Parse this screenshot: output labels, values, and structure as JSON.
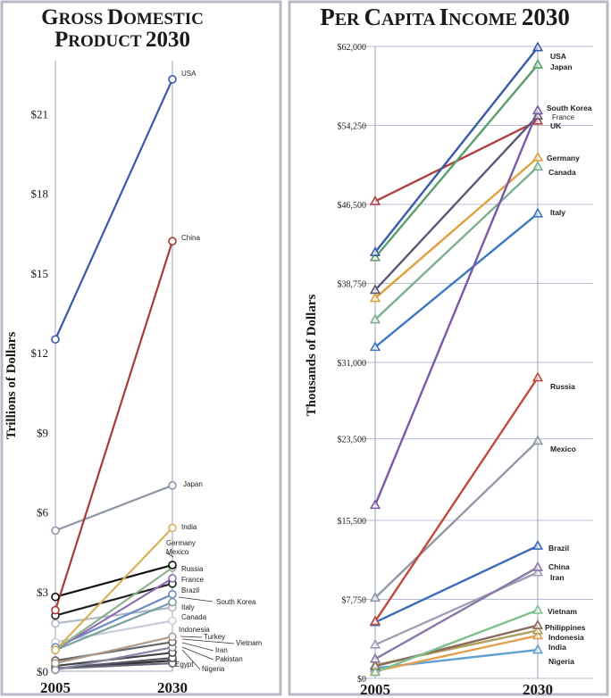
{
  "chart_data": [
    {
      "type": "line",
      "title": "Gross Domestic Product 2030",
      "ylabel": "Trillions of Dollars",
      "x": [
        "2005",
        "2030"
      ],
      "ylim": [
        0,
        23
      ],
      "yticks": [
        "$0",
        "$3",
        "$6",
        "$9",
        "$12",
        "$15",
        "$18",
        "$21"
      ],
      "series": [
        {
          "name": "USA",
          "values": [
            12.5,
            22.3
          ],
          "color": "#3a5aa8"
        },
        {
          "name": "China",
          "values": [
            2.3,
            16.2
          ],
          "color": "#a83a3a"
        },
        {
          "name": "Japan",
          "values": [
            5.3,
            7.0
          ],
          "color": "#8f96a6"
        },
        {
          "name": "India",
          "values": [
            0.8,
            5.4
          ],
          "color": "#d8b25a"
        },
        {
          "name": "Germany",
          "values": [
            2.8,
            4.0
          ],
          "color": "#111111"
        },
        {
          "name": "Mexico",
          "values": [
            0.8,
            3.9
          ],
          "color": "#8fb08a"
        },
        {
          "name": "Russia",
          "values": [
            0.8,
            3.5
          ],
          "color": "#8e6fb3"
        },
        {
          "name": "France",
          "values": [
            2.1,
            3.3
          ],
          "color": "#222222"
        },
        {
          "name": "Brazil",
          "values": [
            0.9,
            2.9
          ],
          "color": "#6c8bc4"
        },
        {
          "name": "South Korea",
          "values": [
            0.8,
            2.6
          ],
          "color": "#7ba0a0"
        },
        {
          "name": "Italy",
          "values": [
            1.8,
            2.4
          ],
          "color": "#b0b8c8"
        },
        {
          "name": "Canada",
          "values": [
            1.1,
            1.9
          ],
          "color": "#c8ced8"
        },
        {
          "name": "Indonesia",
          "values": [
            0.3,
            1.3
          ],
          "color": "#b09a8a"
        },
        {
          "name": "Turkey",
          "values": [
            0.4,
            1.1
          ],
          "color": "#666666"
        },
        {
          "name": "Vietnam",
          "values": [
            0.05,
            0.9
          ],
          "color": "#8a8aa8"
        },
        {
          "name": "Iran",
          "values": [
            0.2,
            0.7
          ],
          "color": "#444444"
        },
        {
          "name": "Pakistan",
          "values": [
            0.1,
            0.5
          ],
          "color": "#555566"
        },
        {
          "name": "Egypt",
          "values": [
            0.1,
            0.3
          ],
          "color": "#666677"
        },
        {
          "name": "Nigeria",
          "values": [
            0.1,
            0.4
          ],
          "color": "#333333"
        }
      ]
    },
    {
      "type": "line",
      "title": "Per Capita Income 2030",
      "ylabel": "Thousands of Dollars",
      "x": [
        "2005",
        "2030"
      ],
      "ylim": [
        0,
        62000
      ],
      "yticks": [
        "$0",
        "$7,750",
        "$15,500",
        "$23,500",
        "$31,000",
        "$38,750",
        "$46,500",
        "$54,250",
        "$62,000"
      ],
      "series": [
        {
          "name": "USA",
          "values": [
            41800,
            61900
          ],
          "color": "#3a5aa8"
        },
        {
          "name": "Japan",
          "values": [
            41300,
            60200
          ],
          "color": "#5b9e6a"
        },
        {
          "name": "South Korea",
          "values": [
            17000,
            55700
          ],
          "color": "#7a5aa8"
        },
        {
          "name": "France",
          "values": [
            38100,
            55200
          ],
          "color": "#5a5a78"
        },
        {
          "name": "UK",
          "values": [
            46800,
            54700
          ],
          "color": "#b04040"
        },
        {
          "name": "Germany",
          "values": [
            37300,
            51100
          ],
          "color": "#e0a040"
        },
        {
          "name": "Canada",
          "values": [
            35200,
            50200
          ],
          "color": "#7ab090"
        },
        {
          "name": "Italy",
          "values": [
            32500,
            45600
          ],
          "color": "#3a78c0"
        },
        {
          "name": "Russia",
          "values": [
            5600,
            29500
          ],
          "color": "#c04a3a"
        },
        {
          "name": "Mexico",
          "values": [
            7900,
            23300
          ],
          "color": "#9098a8"
        },
        {
          "name": "Brazil",
          "values": [
            5500,
            13000
          ],
          "color": "#3a6ab8"
        },
        {
          "name": "China",
          "values": [
            1900,
            10900
          ],
          "color": "#8a78a8"
        },
        {
          "name": "Iran",
          "values": [
            3300,
            10400
          ],
          "color": "#a0a0b8"
        },
        {
          "name": "Vietnam",
          "values": [
            600,
            6700
          ],
          "color": "#80c090"
        },
        {
          "name": "Philippines",
          "values": [
            1200,
            5200
          ],
          "color": "#8a6a5a"
        },
        {
          "name": "Indonesia",
          "values": [
            1300,
            4700
          ],
          "color": "#b0a060"
        },
        {
          "name": "India",
          "values": [
            700,
            4200
          ],
          "color": "#e0a050"
        },
        {
          "name": "Nigeria",
          "values": [
            1000,
            2800
          ],
          "color": "#60a0d0"
        }
      ]
    }
  ]
}
